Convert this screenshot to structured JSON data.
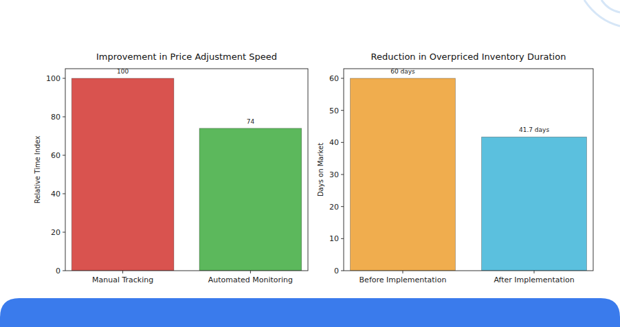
{
  "chart_data": [
    {
      "type": "bar",
      "title": "Improvement in Price Adjustment Speed",
      "y_label": "Relative Time Index",
      "categories": [
        "Manual Tracking",
        "Automated Monitoring"
      ],
      "values": [
        100,
        74
      ],
      "colors": [
        "#d9534f",
        "#5cb85c"
      ],
      "ylim": [
        0,
        105
      ],
      "yticks": [
        0,
        20,
        40,
        60,
        80,
        100
      ],
      "data_labels": true
    },
    {
      "type": "bar",
      "title": "Reduction in Overpriced Inventory Duration",
      "y_label": "Days on Market",
      "categories": [
        "Before Implementation",
        "After Implementation"
      ],
      "values": [
        60,
        41.7
      ],
      "value_labels": [
        "60 days",
        "41.7 days"
      ],
      "colors": [
        "#f0ad4e",
        "#5bc0de"
      ],
      "ylim": [
        0,
        63
      ],
      "yticks": [
        0,
        10,
        20,
        30,
        40,
        50,
        60
      ],
      "data_labels": true
    }
  ]
}
